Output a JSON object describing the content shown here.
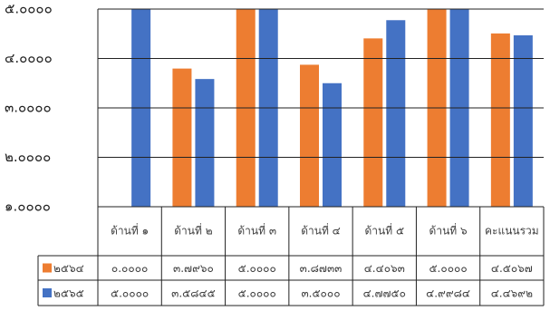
{
  "chart_data": {
    "type": "bar",
    "categories": [
      "ด้านที่ ๑",
      "ด้านที่ ๒",
      "ด้านที่ ๓",
      "ด้านที่ ๔",
      "ด้านที่ ๕",
      "ด้านที่ ๖",
      "คะแนนรวม"
    ],
    "series": [
      {
        "name": "๒๕๖๔",
        "color": "#ed7d31",
        "values": [
          0,
          3.796,
          5,
          3.8733,
          4.4063,
          5,
          4.5067
        ],
        "value_labels": [
          "๐.๐๐๐๐",
          "๓.๗๙๖๐",
          "๕.๐๐๐๐",
          "๓.๘๗๓๓",
          "๔.๔๐๖๓",
          "๕.๐๐๐๐",
          "๔.๕๐๖๗"
        ]
      },
      {
        "name": "๒๕๖๕",
        "color": "#4472c4",
        "values": [
          5,
          3.5845,
          5,
          3.5,
          4.775,
          4.9984,
          4.4692
        ],
        "value_labels": [
          "๕.๐๐๐๐",
          "๓.๕๘๔๕",
          "๕.๐๐๐๐",
          "๓.๕๐๐๐",
          "๔.๗๗๕๐",
          "๔.๙๙๘๔",
          "๔.๔๖๙๒"
        ]
      }
    ],
    "ylim": [
      1,
      5
    ],
    "yticks": [
      {
        "value": 1,
        "label": "๑.๐๐๐๐"
      },
      {
        "value": 2,
        "label": "๒.๐๐๐๐"
      },
      {
        "value": 3,
        "label": "๓.๐๐๐๐"
      },
      {
        "value": 4,
        "label": "๔.๐๐๐๐"
      },
      {
        "value": 5,
        "label": "๕.๐๐๐๐"
      }
    ],
    "grid": true,
    "legend": "table"
  }
}
